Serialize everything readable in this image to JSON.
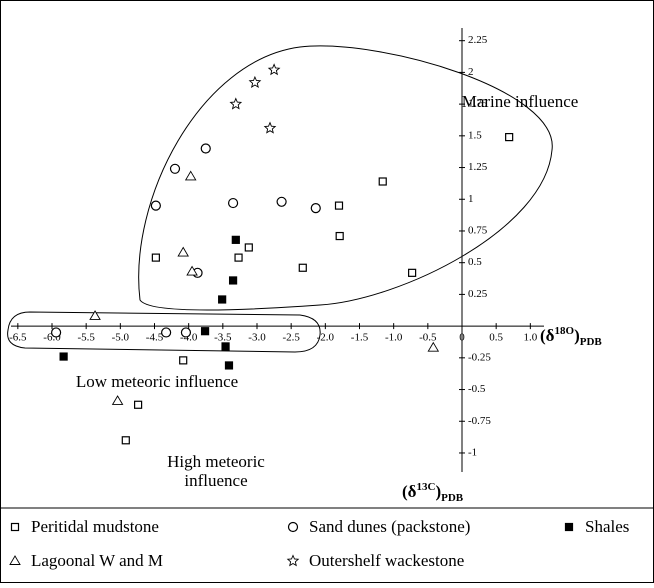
{
  "chart_data": {
    "type": "scatter",
    "xlim": [
      -6.6,
      1.2
    ],
    "ylim": [
      -1.15,
      2.35
    ],
    "xticks": [
      -6.5,
      {
        "value": -6,
        "label": "-6.0"
      },
      -5.5,
      {
        "value": -5,
        "label": "-5.0"
      },
      -4.5,
      {
        "value": -4,
        "label": "-4.0"
      },
      -3.5,
      {
        "value": -3,
        "label": "-3.0"
      },
      -2.5,
      {
        "value": -2,
        "label": "-2.0"
      },
      -1.5,
      {
        "value": -1,
        "label": "-1.0"
      },
      -0.5,
      0,
      0.5,
      {
        "value": 1,
        "label": "1.0"
      }
    ],
    "yticks": [
      2.25,
      2,
      1.75,
      1.5,
      1.25,
      1,
      0.75,
      0.5,
      0.25,
      -0.25,
      -0.5,
      -0.75,
      -1
    ],
    "xlabel": {
      "open": "(δ",
      "sup": "18O",
      "close": ")",
      "sub": "PDB"
    },
    "ylabel": {
      "open": "(δ",
      "sup": "13C",
      "close": ")",
      "sub": "PDB"
    },
    "annotations": [
      {
        "lines": [
          "Marine influence"
        ]
      },
      {
        "lines": [
          "Low meteoric influence"
        ]
      },
      {
        "lines": [
          "High meteoric",
          "influence"
        ]
      }
    ],
    "series": [
      {
        "name": "Peritidal mudstone",
        "marker": "square-open",
        "color": "#000000",
        "x": [
          0.69,
          -0.73,
          -1.16,
          -1.8,
          -1.79,
          -2.33,
          -3.12,
          -3.27,
          -4.48,
          -4.08,
          -4.74,
          -4.92
        ],
        "y": [
          1.49,
          0.42,
          1.14,
          0.95,
          0.71,
          0.46,
          0.62,
          0.54,
          0.54,
          -0.27,
          -0.62,
          -0.9
        ]
      },
      {
        "name": "Sand dunes (packstone)",
        "marker": "circle-open",
        "color": "#000000",
        "x": [
          -4.2,
          -3.75,
          -4.48,
          -3.35,
          -2.64,
          -2.14,
          -3.87,
          -5.94,
          -4.33,
          -4.04
        ],
        "y": [
          1.24,
          1.4,
          0.95,
          0.97,
          0.98,
          0.93,
          0.42,
          -0.05,
          -0.05,
          -0.05
        ]
      },
      {
        "name": "Shales",
        "marker": "square-filled",
        "color": "#000000",
        "x": [
          -3.31,
          -3.35,
          -3.51,
          -3.76,
          -3.46,
          -3.41,
          -5.83
        ],
        "y": [
          0.68,
          0.36,
          0.21,
          -0.04,
          -0.16,
          -0.31,
          -0.24
        ]
      },
      {
        "name": "Lagoonal W and M",
        "marker": "triangle-open",
        "color": "#000000",
        "x": [
          -3.97,
          -4.08,
          -3.95,
          -5.37,
          -5.04,
          -0.42
        ],
        "y": [
          1.18,
          0.58,
          0.43,
          0.08,
          -0.59,
          -0.17
        ]
      },
      {
        "name": "Outershelf wackestone",
        "marker": "star-open",
        "color": "#000000",
        "x": [
          -3.03,
          -2.75,
          -3.31,
          -2.81
        ],
        "y": [
          1.92,
          2.02,
          1.75,
          1.56
        ]
      }
    ]
  }
}
